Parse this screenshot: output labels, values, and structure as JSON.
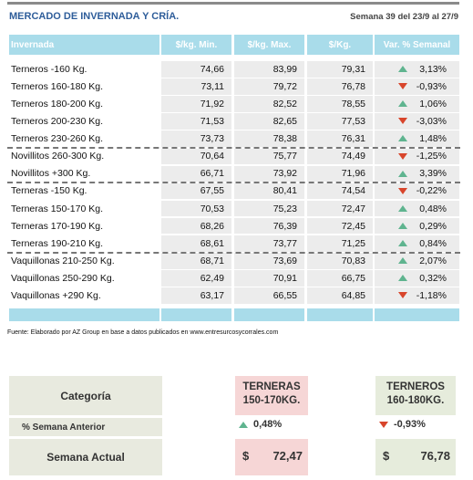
{
  "header": {
    "title": "MERCADO DE INVERNADA Y CRÍA.",
    "week": "Semana 39 del 23/9 al 27/9"
  },
  "table": {
    "columns": [
      "Invernada",
      "$/kg. Min.",
      "$/kg. Max.",
      "$/Kg.",
      "Var. % Semanal"
    ],
    "rows": [
      [
        "Terneros -160 Kg.",
        "74,66",
        "83,99",
        "79,31",
        "3,13%"
      ],
      [
        "Terneros 160-180 Kg.",
        "73,11",
        "79,72",
        "76,78",
        "-0,93%"
      ],
      [
        "Terneros 180-200 Kg.",
        "71,92",
        "82,52",
        "78,55",
        "1,06%"
      ],
      [
        "Terneros 200-230 Kg.",
        "71,53",
        "82,65",
        "77,53",
        "-3,03%"
      ],
      [
        "Terneros 230-260 Kg.",
        "73,73",
        "78,38",
        "76,31",
        "1,48%"
      ],
      [
        "Novillitos 260-300 Kg.",
        "70,64",
        "75,77",
        "74,49",
        "-1,25%"
      ],
      [
        "Novillitos +300 Kg.",
        "66,71",
        "73,92",
        "71,96",
        "3,39%"
      ],
      [
        "Terneras -150 Kg.",
        "67,55",
        "80,41",
        "74,54",
        "-0,22%"
      ],
      [
        "Terneras 150-170 Kg.",
        "70,53",
        "75,23",
        "72,47",
        "0,48%"
      ],
      [
        "Terneras 170-190 Kg.",
        "68,26",
        "76,39",
        "72,45",
        "0,29%"
      ],
      [
        "Terneras 190-210 Kg.",
        "68,61",
        "73,77",
        "71,25",
        "0,84%"
      ],
      [
        "Vaquillonas 210-250 Kg.",
        "68,71",
        "73,69",
        "70,83",
        "2,07%"
      ],
      [
        "Vaquillonas 250-290 Kg.",
        "62,49",
        "70,91",
        "66,75",
        "0,32%"
      ],
      [
        "Vaquillonas +290 Kg.",
        "63,17",
        "66,55",
        "64,85",
        "-1,18%"
      ]
    ],
    "trends": [
      "up",
      "down",
      "up",
      "down",
      "up",
      "down",
      "up",
      "down",
      "up",
      "up",
      "up",
      "up",
      "up",
      "down"
    ],
    "group_breaks": [
      4,
      6,
      10
    ]
  },
  "footnote": "Fuente: Elaborado por AZ Group en base a datos publicados en www.entresurcosycorrales.com",
  "summary": {
    "labels": [
      "Categoría",
      "% Semana Anterior",
      "Semana Actual"
    ],
    "cards": [
      {
        "title_lines": [
          "TERNERAS",
          "150-170KG."
        ],
        "change": "0,48%",
        "trend": "up",
        "currency": "$",
        "value": "72,47"
      },
      {
        "title_lines": [
          "TERNEROS",
          "160-180KG."
        ],
        "change": "-0,93%",
        "trend": "down",
        "currency": "$",
        "value": "76,78"
      }
    ]
  }
}
